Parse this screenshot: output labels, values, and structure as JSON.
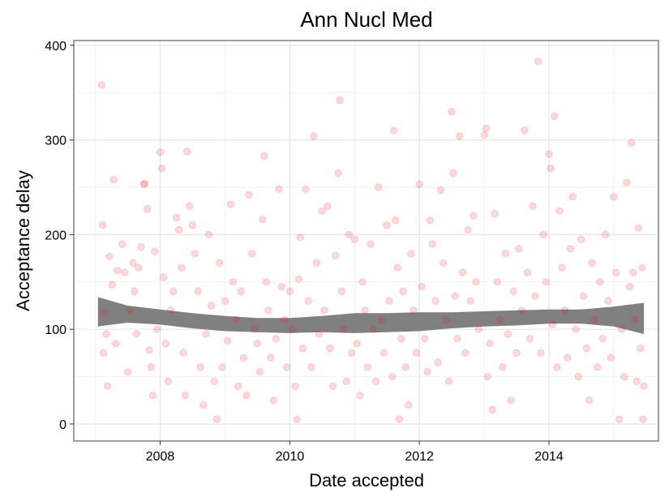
{
  "chart_data": {
    "type": "scatter",
    "title": "Ann Nucl Med",
    "xlabel": "Date accepted",
    "ylabel": "Acceptance delay",
    "x_ticks": [
      "2008",
      "2010",
      "2012",
      "2014"
    ],
    "y_ticks": [
      "0",
      "100",
      "200",
      "300",
      "400"
    ],
    "xlim": [
      "2006-09-01",
      "2015-09-10"
    ],
    "ylim": [
      -18,
      405
    ],
    "grid": true,
    "point_color": "#ff0000",
    "point_opacity": 0.15,
    "smooth": {
      "color": "#808080",
      "x": [
        "2007-01-15",
        "2007-07-01",
        "2008-01-01",
        "2008-07-01",
        "2009-01-01",
        "2009-07-01",
        "2010-01-01",
        "2010-07-01",
        "2011-01-01",
        "2011-07-01",
        "2012-01-01",
        "2012-07-01",
        "2013-01-01",
        "2013-07-01",
        "2014-01-01",
        "2014-07-01",
        "2015-01-01",
        "2015-06-20"
      ],
      "lower": [
        103,
        107,
        105,
        101,
        98,
        97,
        96,
        97,
        96,
        97,
        98,
        101,
        103,
        104,
        106,
        106,
        103,
        95
      ],
      "upper": [
        134,
        125,
        121,
        117,
        114,
        112,
        112,
        114,
        117,
        117,
        118,
        118,
        119,
        120,
        121,
        121,
        124,
        128
      ]
    },
    "points": [
      [
        "2007-02-05",
        358
      ],
      [
        "2007-02-10",
        210
      ],
      [
        "2007-02-20",
        118
      ],
      [
        "2007-03-01",
        95
      ],
      [
        "2007-02-15",
        75
      ],
      [
        "2007-03-10",
        40
      ],
      [
        "2007-03-20",
        177
      ],
      [
        "2007-04-05",
        147
      ],
      [
        "2007-04-15",
        258
      ],
      [
        "2007-04-25",
        85
      ],
      [
        "2007-05-05",
        162
      ],
      [
        "2007-06-01",
        190
      ],
      [
        "2007-06-15",
        160
      ],
      [
        "2007-07-01",
        55
      ],
      [
        "2007-07-15",
        120
      ],
      [
        "2007-08-01",
        170
      ],
      [
        "2007-08-10",
        140
      ],
      [
        "2007-08-20",
        95
      ],
      [
        "2007-09-01",
        165
      ],
      [
        "2007-09-15",
        187
      ],
      [
        "2007-10-01",
        253
      ],
      [
        "2007-10-05",
        254
      ],
      [
        "2007-10-20",
        227
      ],
      [
        "2007-11-01",
        78
      ],
      [
        "2007-11-10",
        60
      ],
      [
        "2007-11-20",
        30
      ],
      [
        "2007-12-01",
        182
      ],
      [
        "2007-12-15",
        100
      ],
      [
        "2008-01-01",
        287
      ],
      [
        "2008-01-10",
        270
      ],
      [
        "2008-01-20",
        155
      ],
      [
        "2008-02-01",
        85
      ],
      [
        "2008-02-15",
        45
      ],
      [
        "2008-03-01",
        120
      ],
      [
        "2008-03-15",
        140
      ],
      [
        "2008-04-01",
        218
      ],
      [
        "2008-04-15",
        205
      ],
      [
        "2008-05-01",
        165
      ],
      [
        "2008-05-10",
        75
      ],
      [
        "2008-05-20",
        30
      ],
      [
        "2008-06-01",
        288
      ],
      [
        "2008-06-15",
        230
      ],
      [
        "2008-07-01",
        210
      ],
      [
        "2008-07-15",
        180
      ],
      [
        "2008-08-01",
        140
      ],
      [
        "2008-08-15",
        60
      ],
      [
        "2008-09-01",
        20
      ],
      [
        "2008-09-15",
        95
      ],
      [
        "2008-10-01",
        200
      ],
      [
        "2008-10-15",
        125
      ],
      [
        "2008-11-01",
        45
      ],
      [
        "2008-11-15",
        5
      ],
      [
        "2008-12-01",
        170
      ],
      [
        "2008-12-15",
        60
      ],
      [
        "2009-01-01",
        130
      ],
      [
        "2009-01-15",
        88
      ],
      [
        "2009-02-01",
        232
      ],
      [
        "2009-02-15",
        150
      ],
      [
        "2009-03-01",
        110
      ],
      [
        "2009-03-15",
        40
      ],
      [
        "2009-04-01",
        140
      ],
      [
        "2009-04-15",
        70
      ],
      [
        "2009-05-01",
        30
      ],
      [
        "2009-05-15",
        242
      ],
      [
        "2009-06-01",
        180
      ],
      [
        "2009-06-15",
        100
      ],
      [
        "2009-07-01",
        85
      ],
      [
        "2009-07-15",
        55
      ],
      [
        "2009-08-01",
        216
      ],
      [
        "2009-08-10",
        283
      ],
      [
        "2009-08-20",
        150
      ],
      [
        "2009-09-01",
        120
      ],
      [
        "2009-09-15",
        70
      ],
      [
        "2009-10-01",
        25
      ],
      [
        "2009-10-15",
        90
      ],
      [
        "2009-11-01",
        248
      ],
      [
        "2009-11-15",
        145
      ],
      [
        "2009-12-01",
        110
      ],
      [
        "2009-12-15",
        60
      ],
      [
        "2010-01-01",
        140
      ],
      [
        "2010-01-15",
        100
      ],
      [
        "2010-02-01",
        40
      ],
      [
        "2010-02-10",
        5
      ],
      [
        "2010-02-20",
        153
      ],
      [
        "2010-03-01",
        197
      ],
      [
        "2010-03-15",
        80
      ],
      [
        "2010-04-01",
        248
      ],
      [
        "2010-04-15",
        130
      ],
      [
        "2010-05-01",
        60
      ],
      [
        "2010-05-15",
        304
      ],
      [
        "2010-06-01",
        170
      ],
      [
        "2010-06-15",
        95
      ],
      [
        "2010-07-01",
        225
      ],
      [
        "2010-07-15",
        120
      ],
      [
        "2010-08-01",
        230
      ],
      [
        "2010-08-15",
        80
      ],
      [
        "2010-09-01",
        40
      ],
      [
        "2010-09-15",
        178
      ],
      [
        "2010-10-01",
        265
      ],
      [
        "2010-10-10",
        342
      ],
      [
        "2010-10-20",
        140
      ],
      [
        "2010-11-01",
        100
      ],
      [
        "2010-11-15",
        45
      ],
      [
        "2010-12-01",
        200
      ],
      [
        "2010-12-15",
        75
      ],
      [
        "2011-01-01",
        195
      ],
      [
        "2011-01-15",
        85
      ],
      [
        "2011-02-01",
        30
      ],
      [
        "2011-02-15",
        150
      ],
      [
        "2011-03-01",
        120
      ],
      [
        "2011-03-15",
        60
      ],
      [
        "2011-04-01",
        190
      ],
      [
        "2011-04-15",
        100
      ],
      [
        "2011-05-01",
        45
      ],
      [
        "2011-05-15",
        250
      ],
      [
        "2011-06-01",
        110
      ],
      [
        "2011-06-15",
        75
      ],
      [
        "2011-07-01",
        210
      ],
      [
        "2011-07-15",
        130
      ],
      [
        "2011-08-01",
        50
      ],
      [
        "2011-08-10",
        310
      ],
      [
        "2011-08-20",
        215
      ],
      [
        "2011-09-01",
        165
      ],
      [
        "2011-09-10",
        5
      ],
      [
        "2011-09-20",
        90
      ],
      [
        "2011-10-01",
        140
      ],
      [
        "2011-10-15",
        60
      ],
      [
        "2011-11-01",
        20
      ],
      [
        "2011-11-15",
        180
      ],
      [
        "2011-12-01",
        120
      ],
      [
        "2011-12-15",
        75
      ],
      [
        "2012-01-01",
        253
      ],
      [
        "2012-01-15",
        145
      ],
      [
        "2012-02-01",
        90
      ],
      [
        "2012-02-15",
        55
      ],
      [
        "2012-03-01",
        215
      ],
      [
        "2012-03-15",
        190
      ],
      [
        "2012-04-01",
        130
      ],
      [
        "2012-04-15",
        65
      ],
      [
        "2012-05-01",
        247
      ],
      [
        "2012-05-15",
        170
      ],
      [
        "2012-06-01",
        110
      ],
      [
        "2012-06-15",
        45
      ],
      [
        "2012-07-01",
        330
      ],
      [
        "2012-07-10",
        265
      ],
      [
        "2012-07-20",
        135
      ],
      [
        "2012-08-01",
        90
      ],
      [
        "2012-08-15",
        304
      ],
      [
        "2012-09-01",
        160
      ],
      [
        "2012-09-15",
        75
      ],
      [
        "2012-10-01",
        205
      ],
      [
        "2012-10-15",
        130
      ],
      [
        "2012-11-01",
        220
      ],
      [
        "2012-11-15",
        150
      ],
      [
        "2012-12-01",
        100
      ],
      [
        "2013-01-01",
        305
      ],
      [
        "2013-01-10",
        312
      ],
      [
        "2013-01-20",
        50
      ],
      [
        "2013-02-01",
        85
      ],
      [
        "2013-02-15",
        15
      ],
      [
        "2013-03-01",
        222
      ],
      [
        "2013-03-15",
        150
      ],
      [
        "2013-04-01",
        110
      ],
      [
        "2013-04-15",
        60
      ],
      [
        "2013-05-01",
        180
      ],
      [
        "2013-05-15",
        95
      ],
      [
        "2013-06-01",
        25
      ],
      [
        "2013-06-15",
        140
      ],
      [
        "2013-07-01",
        75
      ],
      [
        "2013-07-15",
        185
      ],
      [
        "2013-08-01",
        120
      ],
      [
        "2013-08-15",
        310
      ],
      [
        "2013-09-01",
        160
      ],
      [
        "2013-09-15",
        90
      ],
      [
        "2013-10-01",
        230
      ],
      [
        "2013-10-15",
        135
      ],
      [
        "2013-11-01",
        383
      ],
      [
        "2013-11-15",
        75
      ],
      [
        "2013-12-01",
        200
      ],
      [
        "2013-12-15",
        150
      ],
      [
        "2014-01-01",
        285
      ],
      [
        "2014-01-10",
        270
      ],
      [
        "2014-01-20",
        105
      ],
      [
        "2014-02-01",
        325
      ],
      [
        "2014-02-15",
        60
      ],
      [
        "2014-03-01",
        225
      ],
      [
        "2014-03-15",
        165
      ],
      [
        "2014-04-01",
        120
      ],
      [
        "2014-04-15",
        70
      ],
      [
        "2014-05-01",
        185
      ],
      [
        "2014-05-15",
        240
      ],
      [
        "2014-06-01",
        100
      ],
      [
        "2014-06-15",
        50
      ],
      [
        "2014-07-01",
        195
      ],
      [
        "2014-07-15",
        135
      ],
      [
        "2014-08-01",
        80
      ],
      [
        "2014-08-15",
        25
      ],
      [
        "2014-09-01",
        170
      ],
      [
        "2014-09-15",
        110
      ],
      [
        "2014-10-01",
        60
      ],
      [
        "2014-10-15",
        150
      ],
      [
        "2014-11-01",
        90
      ],
      [
        "2014-11-15",
        200
      ],
      [
        "2014-12-01",
        130
      ],
      [
        "2014-12-15",
        70
      ],
      [
        "2015-01-01",
        240
      ],
      [
        "2015-01-15",
        160
      ],
      [
        "2015-02-01",
        5
      ],
      [
        "2015-02-15",
        100
      ],
      [
        "2015-03-01",
        50
      ],
      [
        "2015-03-15",
        255
      ],
      [
        "2015-04-01",
        145
      ],
      [
        "2015-04-10",
        297
      ],
      [
        "2015-04-20",
        160
      ],
      [
        "2015-05-01",
        110
      ],
      [
        "2015-05-10",
        45
      ],
      [
        "2015-05-20",
        207
      ],
      [
        "2015-06-01",
        80
      ],
      [
        "2015-06-10",
        165
      ],
      [
        "2015-06-15",
        5
      ],
      [
        "2015-06-20",
        40
      ]
    ]
  }
}
